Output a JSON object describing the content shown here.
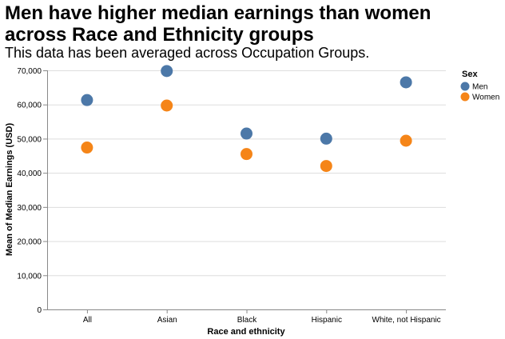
{
  "chart_data": {
    "type": "scatter",
    "title": "Men have higher median earnings than women\nacross Race and Ethnicity groups",
    "subtitle": "This data has been averaged across Occupation Groups.",
    "xlabel": "Race and ethnicity",
    "ylabel": "Mean of Median Earnings (USD)",
    "categories": [
      "All",
      "Asian",
      "Black",
      "Hispanic",
      "White, not Hispanic"
    ],
    "ylim": [
      0,
      70000
    ],
    "yticks": [
      0,
      10000,
      20000,
      30000,
      40000,
      50000,
      60000,
      70000
    ],
    "ytick_labels": [
      "0",
      "10,000",
      "20,000",
      "30,000",
      "40,000",
      "50,000",
      "60,000",
      "70,000"
    ],
    "grid": true,
    "legend": {
      "title": "Sex",
      "placement": "top-right"
    },
    "series": [
      {
        "name": "Men",
        "color": "#4c78a8",
        "values": [
          61300,
          69800,
          51500,
          50000,
          66500
        ]
      },
      {
        "name": "Women",
        "color": "#f58518",
        "values": [
          47400,
          59700,
          45500,
          42000,
          49400
        ]
      }
    ]
  }
}
